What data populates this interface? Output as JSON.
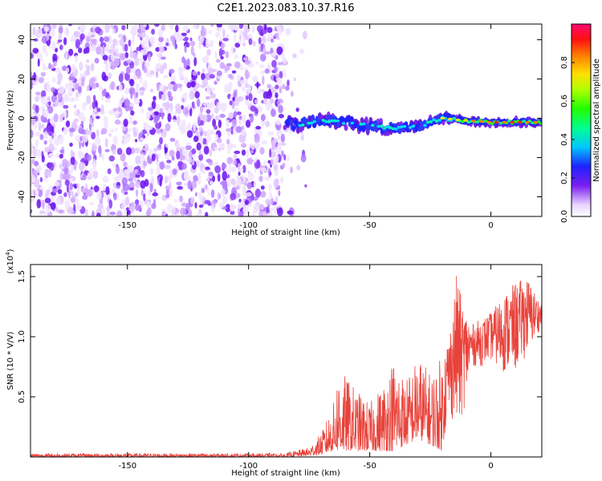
{
  "title": "C2E1.2023.083.10.37.R16",
  "chart_data": [
    {
      "type": "heatmap",
      "xlabel": "Height of straight line (km)",
      "ylabel": "Frequency (Hz)",
      "xlim": [
        -190,
        21
      ],
      "ylim": [
        -50,
        48
      ],
      "xticks": [
        -150,
        -100,
        -50,
        0
      ],
      "yticks": [
        -40,
        -20,
        0,
        20,
        40
      ],
      "colorbar": {
        "label": "Normalized spectral amplitude",
        "range": [
          0,
          1
        ],
        "ticks": [
          0.0,
          0.2,
          0.4,
          0.6,
          0.8
        ]
      },
      "signal_track": [
        {
          "x": -82,
          "y": -4
        },
        {
          "x": -70,
          "y": -1
        },
        {
          "x": -60,
          "y": -2
        },
        {
          "x": -50,
          "y": -4
        },
        {
          "x": -40,
          "y": -5
        },
        {
          "x": -30,
          "y": -4
        },
        {
          "x": -20,
          "y": 0
        },
        {
          "x": -12,
          "y": -1
        },
        {
          "x": 0,
          "y": -2
        },
        {
          "x": 10,
          "y": -2
        },
        {
          "x": 20,
          "y": -2
        }
      ],
      "noise_region": {
        "x": [
          -190,
          -85
        ],
        "y": [
          -50,
          48
        ]
      }
    },
    {
      "type": "line",
      "xlabel": "Height of straight line (km)",
      "ylabel": "SNR (10 * V/V)",
      "yscale_label": "(x10",
      "yscale_exp": "4",
      "yscale_close": ")",
      "xlim": [
        -190,
        21
      ],
      "ylim": [
        0,
        1.6
      ],
      "xticks": [
        -150,
        -100,
        -50,
        0
      ],
      "yticks": [
        0.5,
        1.0,
        1.5
      ],
      "ytick_labels": [
        "0.5",
        "1.0",
        "1.5"
      ],
      "series": [
        {
          "color": "#e8423a",
          "envelope": [
            {
              "x": -190,
              "lo": 0.0,
              "hi": 0.03
            },
            {
              "x": -85,
              "lo": 0.0,
              "hi": 0.03
            },
            {
              "x": -75,
              "lo": 0.01,
              "hi": 0.08
            },
            {
              "x": -70,
              "lo": 0.02,
              "hi": 0.2
            },
            {
              "x": -65,
              "lo": 0.05,
              "hi": 0.45
            },
            {
              "x": -63,
              "lo": 0.05,
              "hi": 0.75
            },
            {
              "x": -55,
              "lo": 0.05,
              "hi": 0.55
            },
            {
              "x": -50,
              "lo": 0.05,
              "hi": 0.45
            },
            {
              "x": -45,
              "lo": 0.05,
              "hi": 0.6
            },
            {
              "x": -40,
              "lo": 0.05,
              "hi": 0.85
            },
            {
              "x": -35,
              "lo": 0.1,
              "hi": 0.65
            },
            {
              "x": -30,
              "lo": 0.15,
              "hi": 0.85
            },
            {
              "x": -25,
              "lo": 0.1,
              "hi": 0.7
            },
            {
              "x": -20,
              "lo": 0.05,
              "hi": 0.85
            },
            {
              "x": -17,
              "lo": 0.35,
              "hi": 1.05
            },
            {
              "x": -14,
              "lo": 0.2,
              "hi": 1.55
            },
            {
              "x": -12,
              "lo": 0.3,
              "hi": 1.3
            },
            {
              "x": -8,
              "lo": 0.75,
              "hi": 1.1
            },
            {
              "x": -4,
              "lo": 0.75,
              "hi": 1.15
            },
            {
              "x": 0,
              "lo": 0.8,
              "hi": 1.2
            },
            {
              "x": 5,
              "lo": 0.7,
              "hi": 1.35
            },
            {
              "x": 10,
              "lo": 0.7,
              "hi": 1.45
            },
            {
              "x": 15,
              "lo": 0.85,
              "hi": 1.5
            },
            {
              "x": 20,
              "lo": 1.05,
              "hi": 1.3
            }
          ]
        }
      ]
    }
  ]
}
